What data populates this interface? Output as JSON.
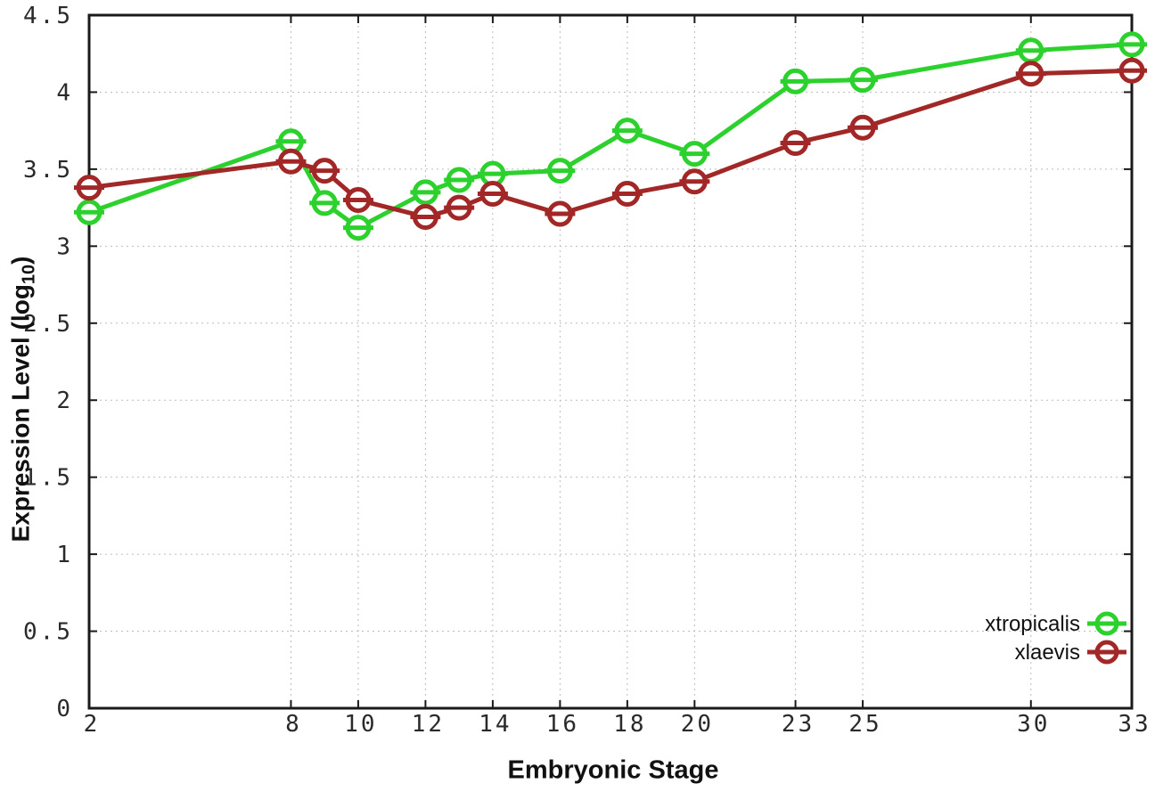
{
  "axes": {
    "x_title": "Embryonic Stage",
    "y_title_pre": "Expression Level (log",
    "y_title_sub": "10",
    "y_title_post": ")"
  },
  "colors": {
    "xtropicalis": "#2dd12d",
    "xlaevis": "#a22727",
    "grid": "#bcbcbc",
    "frame": "#1a1a1a",
    "tick_text": "#2a2a2a",
    "legend_text": "#111111",
    "marker_fill": "#ffffff"
  },
  "legend": {
    "position": "inside-bottom-right",
    "items": [
      {
        "label": "xtropicalis",
        "color": "#2dd12d"
      },
      {
        "label": "xlaevis",
        "color": "#a22727"
      }
    ]
  },
  "chart_data": {
    "type": "line",
    "title": "",
    "xlabel": "Embryonic Stage",
    "ylabel": "Expression Level (log10)",
    "x": [
      2,
      8,
      9,
      10,
      12,
      13,
      14,
      16,
      18,
      20,
      23,
      25,
      30,
      33
    ],
    "series": [
      {
        "name": "xtropicalis",
        "color": "#2dd12d",
        "values": [
          3.22,
          3.68,
          3.28,
          3.12,
          3.35,
          3.43,
          3.47,
          3.49,
          3.75,
          3.6,
          4.07,
          4.08,
          4.27,
          4.31
        ]
      },
      {
        "name": "xlaevis",
        "color": "#a22727",
        "values": [
          3.38,
          3.55,
          3.49,
          3.3,
          3.19,
          3.25,
          3.34,
          3.21,
          3.34,
          3.42,
          3.67,
          3.77,
          4.12,
          4.14
        ]
      }
    ],
    "xticks": [
      2,
      8,
      10,
      12,
      14,
      16,
      18,
      20,
      23,
      25,
      30,
      33
    ],
    "yticks": [
      0,
      0.5,
      1,
      1.5,
      2,
      2.5,
      3,
      3.5,
      4,
      4.5
    ],
    "xlim": [
      2,
      33
    ],
    "ylim": [
      0,
      4.5
    ],
    "grid": true,
    "grid_style": "dotted",
    "marker": "open-circle-with-hbar",
    "legend_position": "inside-bottom-right"
  }
}
